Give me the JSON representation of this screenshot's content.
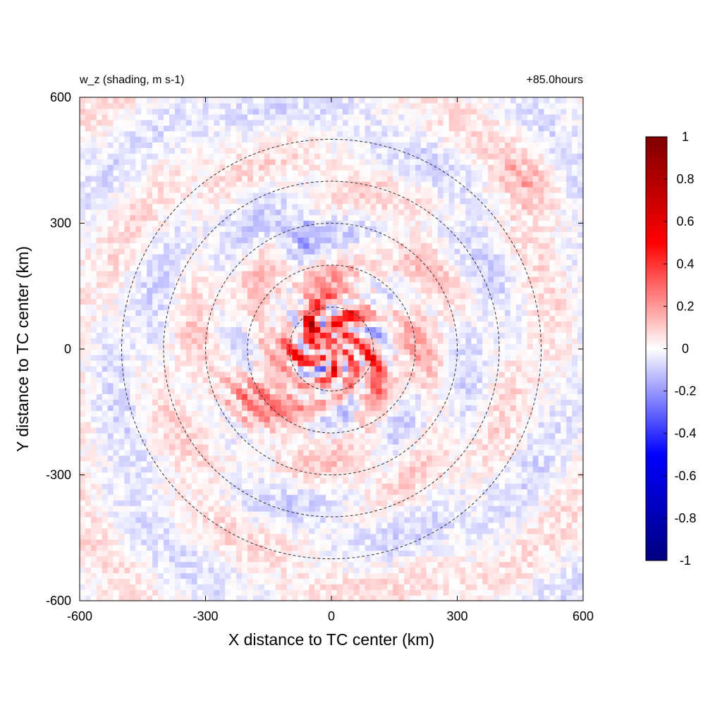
{
  "chart_data": {
    "type": "heatmap",
    "title_left": "w_z (shading, m s-1)",
    "title_right": "+85.0hours",
    "xlabel": "X distance to TC center (km)",
    "ylabel": "Y distance to TC center (km)",
    "xlim": [
      -600,
      600
    ],
    "ylim": [
      -600,
      600
    ],
    "xticks": [
      -600,
      -300,
      0,
      300,
      600
    ],
    "yticks": [
      -600,
      -300,
      0,
      300,
      600
    ],
    "xtick_labels": [
      "-600",
      "-300",
      "0",
      "300",
      "600"
    ],
    "ytick_labels": [
      "-600",
      "-300",
      "0",
      "300",
      "600"
    ],
    "reference_circle_radii_km": [
      100,
      200,
      300,
      400,
      500
    ],
    "reference_circle_style": "dashed",
    "colorbar": {
      "min": -1,
      "max": 1,
      "ticks": [
        1,
        0.8,
        0.6,
        0.4,
        0.2,
        0,
        -0.2,
        -0.4,
        -0.6,
        -0.8,
        -1
      ],
      "tick_labels": [
        "1",
        "0.8",
        "0.6",
        "0.4",
        "0.2",
        "0",
        "-0.2",
        "-0.4",
        "-0.6",
        "-0.8",
        "-1"
      ],
      "colormap": [
        "#00007f",
        "#0000ff",
        "#ffffff",
        "#ff0000",
        "#7f0000"
      ]
    },
    "features": [
      {
        "desc": "inner core alternating red/blue spiral",
        "x": 20,
        "y": 20,
        "r": 120,
        "amp": 0.6
      },
      {
        "desc": "strong updraft cells",
        "x": -40,
        "y": 50,
        "r": 25,
        "amp": 0.9
      },
      {
        "desc": "strong updraft cells",
        "x": 90,
        "y": 10,
        "r": 25,
        "amp": 0.8
      },
      {
        "desc": "strong downdraft cells",
        "x": 110,
        "y": 40,
        "r": 30,
        "amp": -0.8
      },
      {
        "desc": "outer band north",
        "x": -80,
        "y": 260,
        "r": 40,
        "amp": -0.5
      },
      {
        "desc": "outer band southwest",
        "x": -200,
        "y": -130,
        "r": 60,
        "amp": 0.5
      },
      {
        "desc": "northeast eddy",
        "x": 460,
        "y": 400,
        "r": 50,
        "amp": 0.3
      }
    ],
    "grid": false,
    "legend": "colorbar-right"
  }
}
